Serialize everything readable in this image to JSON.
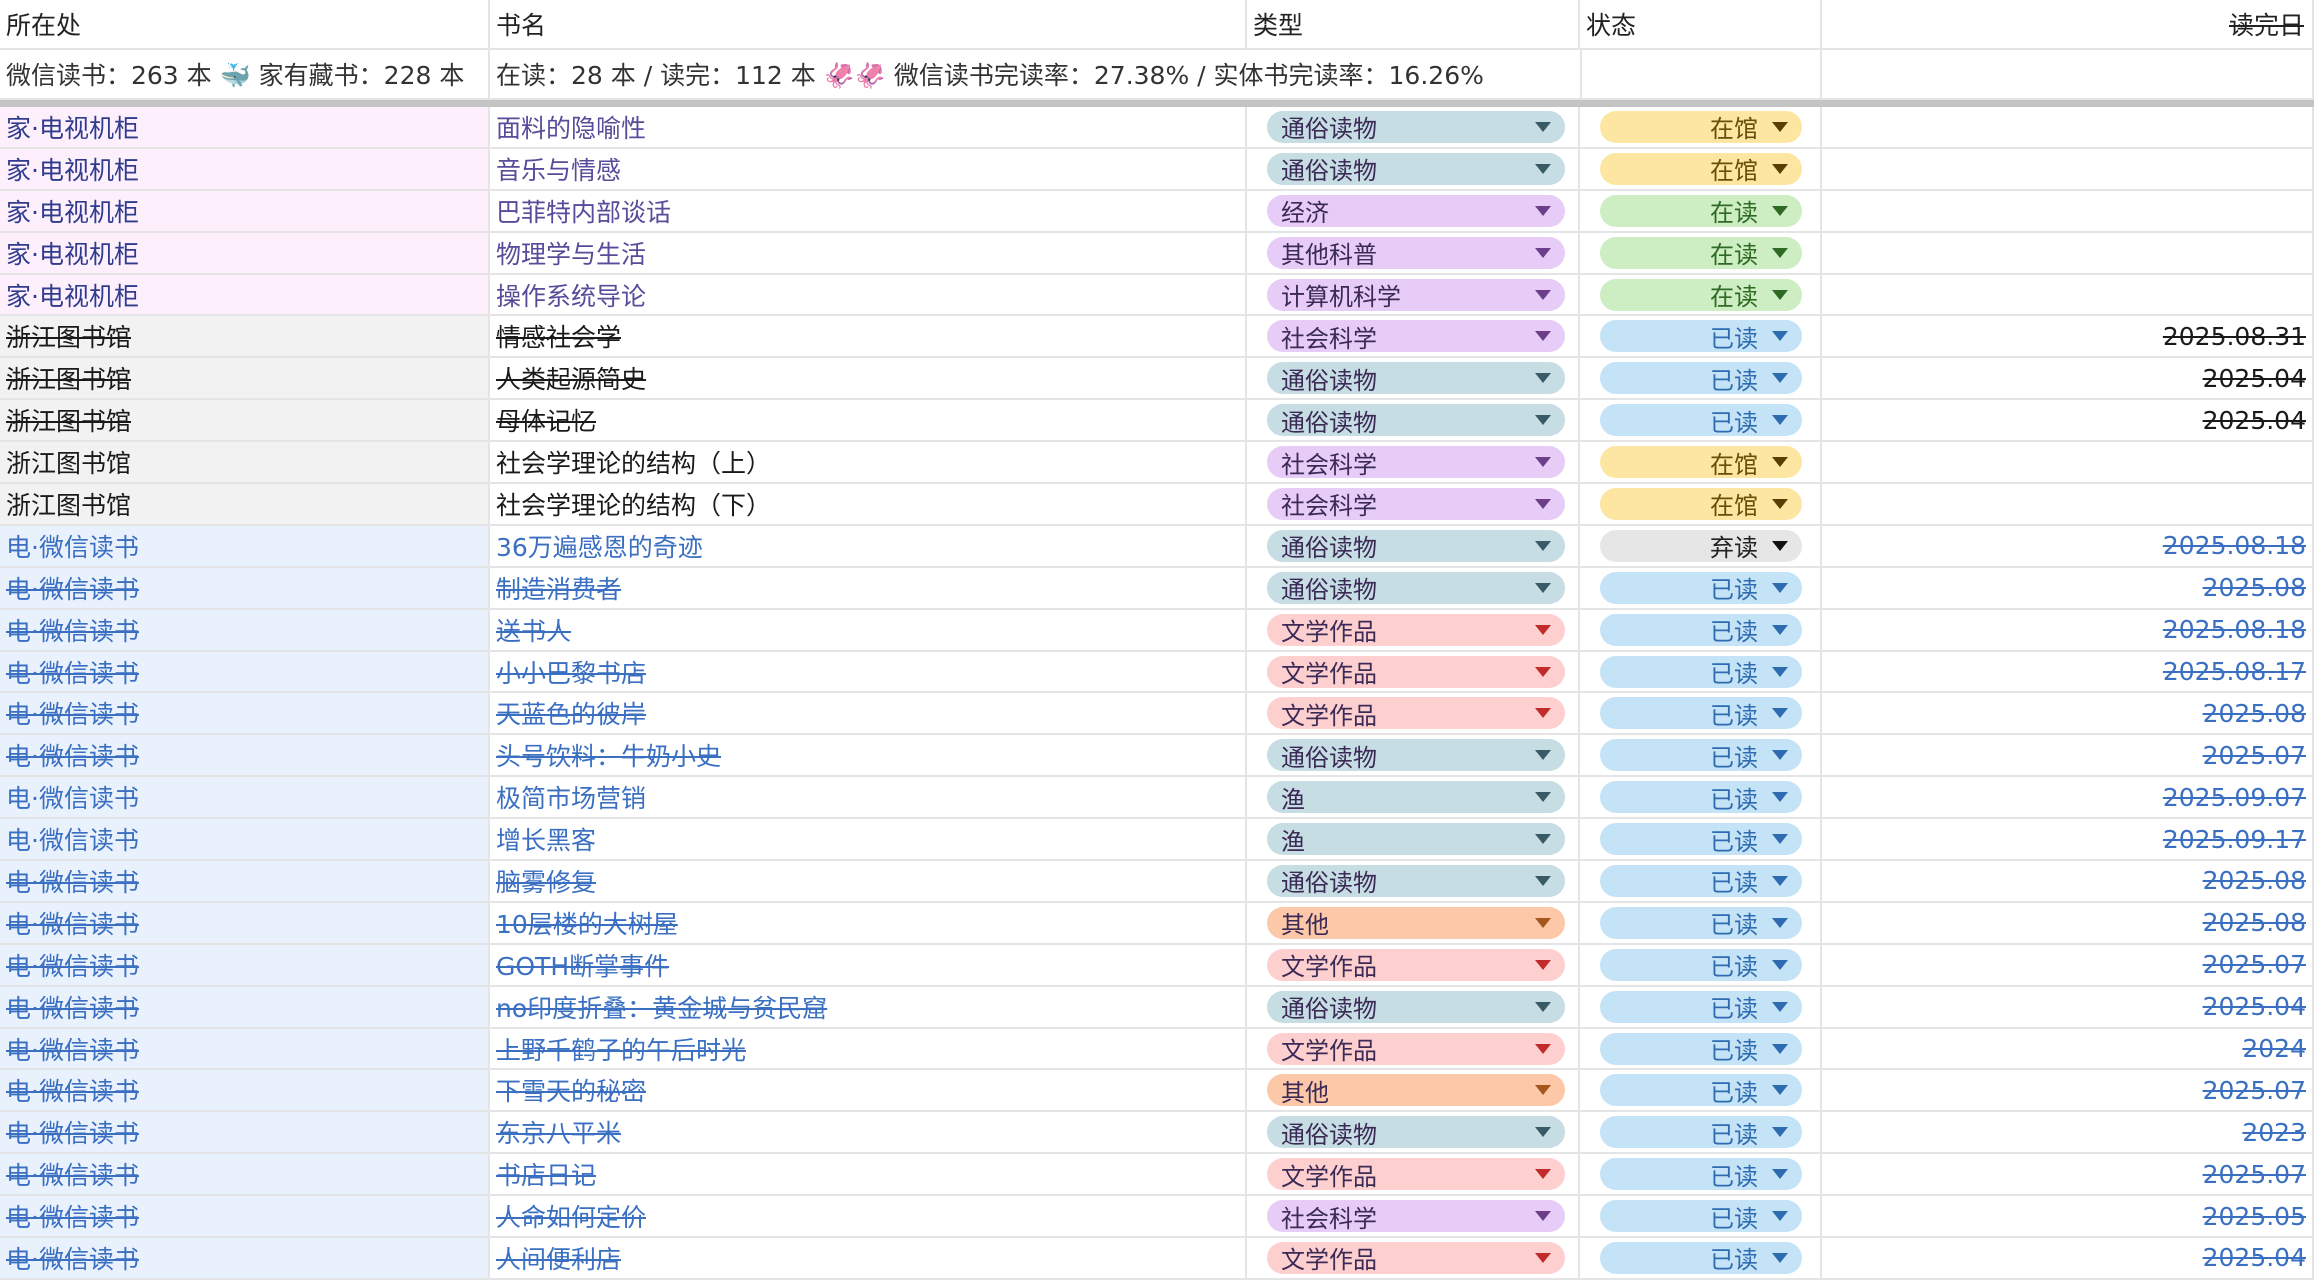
{
  "header": {
    "location": "所在处",
    "title": "书名",
    "category": "类型",
    "status": "状态",
    "finished": "读完日"
  },
  "stats": {
    "c1": "微信读书：263 本 🐳 家有藏书：228 本",
    "c2": "在读：28 本 / 读完：112 本 🦑🦑 微信读书完读率：27.38% / 实体书完读率：16.26%"
  },
  "colors": {
    "category": {
      "通俗读物": {
        "bg": "#c6dde3",
        "caret": "#3a5a66"
      },
      "经济": {
        "bg": "#e6ccf6",
        "caret": "#6b3f8a"
      },
      "其他科普": {
        "bg": "#e6ccf6",
        "caret": "#6b3f8a"
      },
      "计算机科学": {
        "bg": "#e6ccf6",
        "caret": "#6b3f8a"
      },
      "社会科学": {
        "bg": "#e6ccf6",
        "caret": "#6b3f8a"
      },
      "文学作品": {
        "bg": "#fdd0cf",
        "caret": "#c22b2b"
      },
      "渔": {
        "bg": "#c6dde3",
        "caret": "#3a5a66"
      },
      "其他": {
        "bg": "#fdc8a8",
        "caret": "#a5561c"
      }
    },
    "status": {
      "在馆": {
        "bg": "#fce6a2",
        "text": "#6a4e08",
        "caret": "#5a3f05"
      },
      "在读": {
        "bg": "#cdeec2",
        "text": "#2f6a25",
        "caret": "#2f6a25"
      },
      "已读": {
        "bg": "#c5e3f7",
        "text": "#2e6bb0",
        "caret": "#2e6bb0"
      },
      "弃读": {
        "bg": "#e6e6e6",
        "text": "#222222",
        "caret": "#111111"
      }
    }
  },
  "rows": [
    {
      "location": "家·电视机柜",
      "loc_type": "home",
      "title": "面料的隐喻性",
      "category": "通俗读物",
      "status": "在馆",
      "date": "",
      "struck": false
    },
    {
      "location": "家·电视机柜",
      "loc_type": "home",
      "title": "音乐与情感",
      "category": "通俗读物",
      "status": "在馆",
      "date": "",
      "struck": false
    },
    {
      "location": "家·电视机柜",
      "loc_type": "home",
      "title": "巴菲特内部谈话",
      "category": "经济",
      "status": "在读",
      "date": "",
      "struck": false
    },
    {
      "location": "家·电视机柜",
      "loc_type": "home",
      "title": "物理学与生活",
      "category": "其他科普",
      "status": "在读",
      "date": "",
      "struck": false
    },
    {
      "location": "家·电视机柜",
      "loc_type": "home",
      "title": "操作系统导论",
      "category": "计算机科学",
      "status": "在读",
      "date": "",
      "struck": false
    },
    {
      "location": "浙江图书馆",
      "loc_type": "lib",
      "title": "情感社会学",
      "category": "社会科学",
      "status": "已读",
      "date": "2025.08.31",
      "struck": true
    },
    {
      "location": "浙江图书馆",
      "loc_type": "lib",
      "title": "人类起源简史",
      "category": "通俗读物",
      "status": "已读",
      "date": "2025.04",
      "struck": true
    },
    {
      "location": "浙江图书馆",
      "loc_type": "lib",
      "title": "母体记忆",
      "category": "通俗读物",
      "status": "已读",
      "date": "2025.04",
      "struck": true
    },
    {
      "location": "浙江图书馆",
      "loc_type": "lib",
      "title": "社会学理论的结构（上）",
      "category": "社会科学",
      "status": "在馆",
      "date": "",
      "struck": false
    },
    {
      "location": "浙江图书馆",
      "loc_type": "lib",
      "title": "社会学理论的结构（下）",
      "category": "社会科学",
      "status": "在馆",
      "date": "",
      "struck": false
    },
    {
      "location": "电·微信读书",
      "loc_type": "ebook",
      "title": "36万遍感恩的奇迹",
      "category": "通俗读物",
      "status": "弃读",
      "date": "2025.08.18",
      "struck": false,
      "date_struck": true
    },
    {
      "location": "电·微信读书",
      "loc_type": "ebook",
      "title": "制造消费者",
      "category": "通俗读物",
      "status": "已读",
      "date": "2025.08",
      "struck": true
    },
    {
      "location": "电·微信读书",
      "loc_type": "ebook",
      "title": "送书人",
      "category": "文学作品",
      "status": "已读",
      "date": "2025.08.18",
      "struck": true
    },
    {
      "location": "电·微信读书",
      "loc_type": "ebook",
      "title": "小小巴黎书店",
      "category": "文学作品",
      "status": "已读",
      "date": "2025.08.17",
      "struck": true
    },
    {
      "location": "电·微信读书",
      "loc_type": "ebook",
      "title": "天蓝色的彼岸",
      "category": "文学作品",
      "status": "已读",
      "date": "2025.08",
      "struck": true
    },
    {
      "location": "电·微信读书",
      "loc_type": "ebook",
      "title": "头号饮料：牛奶小史",
      "category": "通俗读物",
      "status": "已读",
      "date": "2025.07",
      "struck": true
    },
    {
      "location": "电·微信读书",
      "loc_type": "ebook",
      "title": "极简市场营销",
      "category": "渔",
      "status": "已读",
      "date": "2025.09.07",
      "struck": false,
      "date_struck": true
    },
    {
      "location": "电·微信读书",
      "loc_type": "ebook",
      "title": "增长黑客",
      "category": "渔",
      "status": "已读",
      "date": "2025.09.17",
      "struck": false,
      "date_struck": true
    },
    {
      "location": "电·微信读书",
      "loc_type": "ebook",
      "title": "脑雾修复",
      "category": "通俗读物",
      "status": "已读",
      "date": "2025.08",
      "struck": true
    },
    {
      "location": "电·微信读书",
      "loc_type": "ebook",
      "title": "10层楼的大树屋",
      "category": "其他",
      "status": "已读",
      "date": "2025.08",
      "struck": true
    },
    {
      "location": "电·微信读书",
      "loc_type": "ebook",
      "title": "GOTH断掌事件",
      "category": "文学作品",
      "status": "已读",
      "date": "2025.07",
      "struck": true
    },
    {
      "location": "电·微信读书",
      "loc_type": "ebook",
      "title": "no印度折叠：黄金城与贫民窟",
      "category": "通俗读物",
      "status": "已读",
      "date": "2025.04",
      "struck": true
    },
    {
      "location": "电·微信读书",
      "loc_type": "ebook",
      "title": "上野千鹤子的午后时光",
      "category": "文学作品",
      "status": "已读",
      "date": "2024",
      "struck": true
    },
    {
      "location": "电·微信读书",
      "loc_type": "ebook",
      "title": "下雪天的秘密",
      "category": "其他",
      "status": "已读",
      "date": "2025.07",
      "struck": true
    },
    {
      "location": "电·微信读书",
      "loc_type": "ebook",
      "title": "东京八平米",
      "category": "通俗读物",
      "status": "已读",
      "date": "2023",
      "struck": true
    },
    {
      "location": "电·微信读书",
      "loc_type": "ebook",
      "title": "书店日记",
      "category": "文学作品",
      "status": "已读",
      "date": "2025.07",
      "struck": true
    },
    {
      "location": "电·微信读书",
      "loc_type": "ebook",
      "title": "人命如何定价",
      "category": "社会科学",
      "status": "已读",
      "date": "2025.05",
      "struck": true
    },
    {
      "location": "电·微信读书",
      "loc_type": "ebook",
      "title": "人间便利店",
      "category": "文学作品",
      "status": "已读",
      "date": "2025.04",
      "struck": true
    }
  ]
}
